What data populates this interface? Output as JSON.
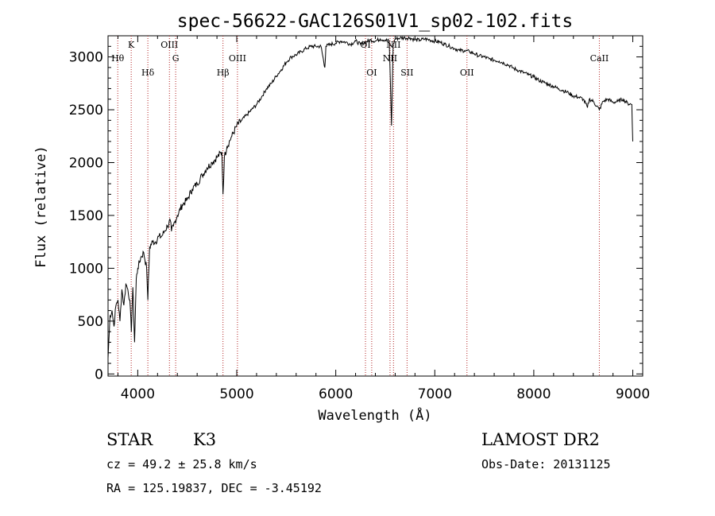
{
  "chart_data": {
    "type": "line",
    "title": "spec-56622-GAC126S01V1_sp02-102.fits",
    "xlabel": "Wavelength (Å)",
    "ylabel": "Flux (relative)",
    "xlim": [
      3700,
      9100
    ],
    "ylim": [
      -20,
      3200
    ],
    "xticks": [
      "4000",
      "5000",
      "6000",
      "7000",
      "8000",
      "9000"
    ],
    "xtick_values": [
      4000,
      5000,
      6000,
      7000,
      8000,
      9000
    ],
    "yticks": [
      "0",
      "500",
      "1000",
      "1500",
      "2000",
      "2500",
      "3000"
    ],
    "ytick_values": [
      0,
      500,
      1000,
      1500,
      2000,
      2500,
      3000
    ],
    "series": [
      {
        "color": "#000000",
        "x": [
          3700,
          3720,
          3740,
          3760,
          3780,
          3800,
          3820,
          3840,
          3860,
          3880,
          3900,
          3920,
          3935,
          3950,
          3968,
          3985,
          4000,
          4030,
          4060,
          4090,
          4102,
          4120,
          4150,
          4180,
          4210,
          4240,
          4270,
          4300,
          4330,
          4340,
          4360,
          4400,
          4450,
          4500,
          4550,
          4600,
          4650,
          4700,
          4750,
          4800,
          4850,
          4861,
          4875,
          4900,
          4950,
          5000,
          5050,
          5100,
          5150,
          5200,
          5250,
          5300,
          5350,
          5400,
          5450,
          5500,
          5550,
          5600,
          5650,
          5700,
          5750,
          5800,
          5850,
          5890,
          5900,
          5950,
          6000,
          6050,
          6100,
          6150,
          6200,
          6250,
          6300,
          6350,
          6400,
          6450,
          6500,
          6540,
          6563,
          6580,
          6600,
          6650,
          6700,
          6750,
          6800,
          6850,
          6900,
          6950,
          7000,
          7050,
          7100,
          7150,
          7200,
          7250,
          7300,
          7350,
          7400,
          7450,
          7500,
          7550,
          7600,
          7650,
          7700,
          7750,
          7800,
          7850,
          7900,
          7950,
          8000,
          8050,
          8100,
          8150,
          8200,
          8250,
          8300,
          8350,
          8400,
          8450,
          8500,
          8542,
          8560,
          8600,
          8662,
          8700,
          8750,
          8800,
          8850,
          8900,
          8950,
          8990,
          9000
        ],
        "y": [
          150,
          550,
          600,
          450,
          650,
          700,
          500,
          800,
          650,
          850,
          800,
          700,
          400,
          820,
          300,
          900,
          1000,
          1100,
          1150,
          1000,
          700,
          1200,
          1250,
          1250,
          1300,
          1300,
          1350,
          1400,
          1450,
          1350,
          1400,
          1500,
          1600,
          1650,
          1750,
          1800,
          1880,
          1950,
          2000,
          2050,
          2100,
          1700,
          2050,
          2150,
          2250,
          2350,
          2400,
          2450,
          2500,
          2550,
          2620,
          2700,
          2750,
          2820,
          2880,
          2950,
          3000,
          3020,
          3050,
          3080,
          3100,
          3100,
          3100,
          2900,
          3100,
          3120,
          3130,
          3150,
          3140,
          3120,
          3150,
          3120,
          3140,
          3160,
          3150,
          3170,
          3160,
          3150,
          2350,
          3120,
          3170,
          3180,
          3180,
          3180,
          3160,
          3160,
          3170,
          3160,
          3150,
          3140,
          3120,
          3100,
          3080,
          3060,
          3060,
          3050,
          3030,
          3010,
          3000,
          2980,
          2970,
          2960,
          2940,
          2920,
          2890,
          2870,
          2850,
          2830,
          2810,
          2780,
          2760,
          2740,
          2720,
          2700,
          2680,
          2660,
          2630,
          2620,
          2600,
          2520,
          2600,
          2580,
          2500,
          2580,
          2600,
          2570,
          2580,
          2600,
          2560,
          2550,
          2200
        ]
      }
    ],
    "lines": [
      {
        "label": "Hθ",
        "x": 3798,
        "row": 2
      },
      {
        "label": "K",
        "x": 3934,
        "row": 1
      },
      {
        "label": "Hδ",
        "x": 4102,
        "row": 3
      },
      {
        "label": "OIII",
        "x": 4320,
        "row": 1
      },
      {
        "label": "G",
        "x": 4383,
        "row": 2
      },
      {
        "label": "Hβ",
        "x": 4861,
        "row": 3
      },
      {
        "label": "OIII",
        "x": 5007,
        "row": 2
      },
      {
        "label": "OI",
        "x": 6300,
        "row": 1
      },
      {
        "label": "OI",
        "x": 6363,
        "row": 3
      },
      {
        "label": "NII",
        "x": 6548,
        "row": 2
      },
      {
        "label": "NII",
        "x": 6583,
        "row": 1
      },
      {
        "label": "SII",
        "x": 6720,
        "row": 3
      },
      {
        "label": "OII",
        "x": 7325,
        "row": 3
      },
      {
        "label": "CaII",
        "x": 8662,
        "row": 2
      }
    ],
    "grid": false,
    "legend": "none"
  },
  "info": {
    "class": "STAR",
    "subclass": "K3",
    "survey": "LAMOST DR2",
    "cz": "cz = 49.2 ± 25.8 km/s",
    "obs_date": "Obs-Date: 20131125",
    "radec": "RA = 125.19837, DEC =  -3.45192"
  }
}
